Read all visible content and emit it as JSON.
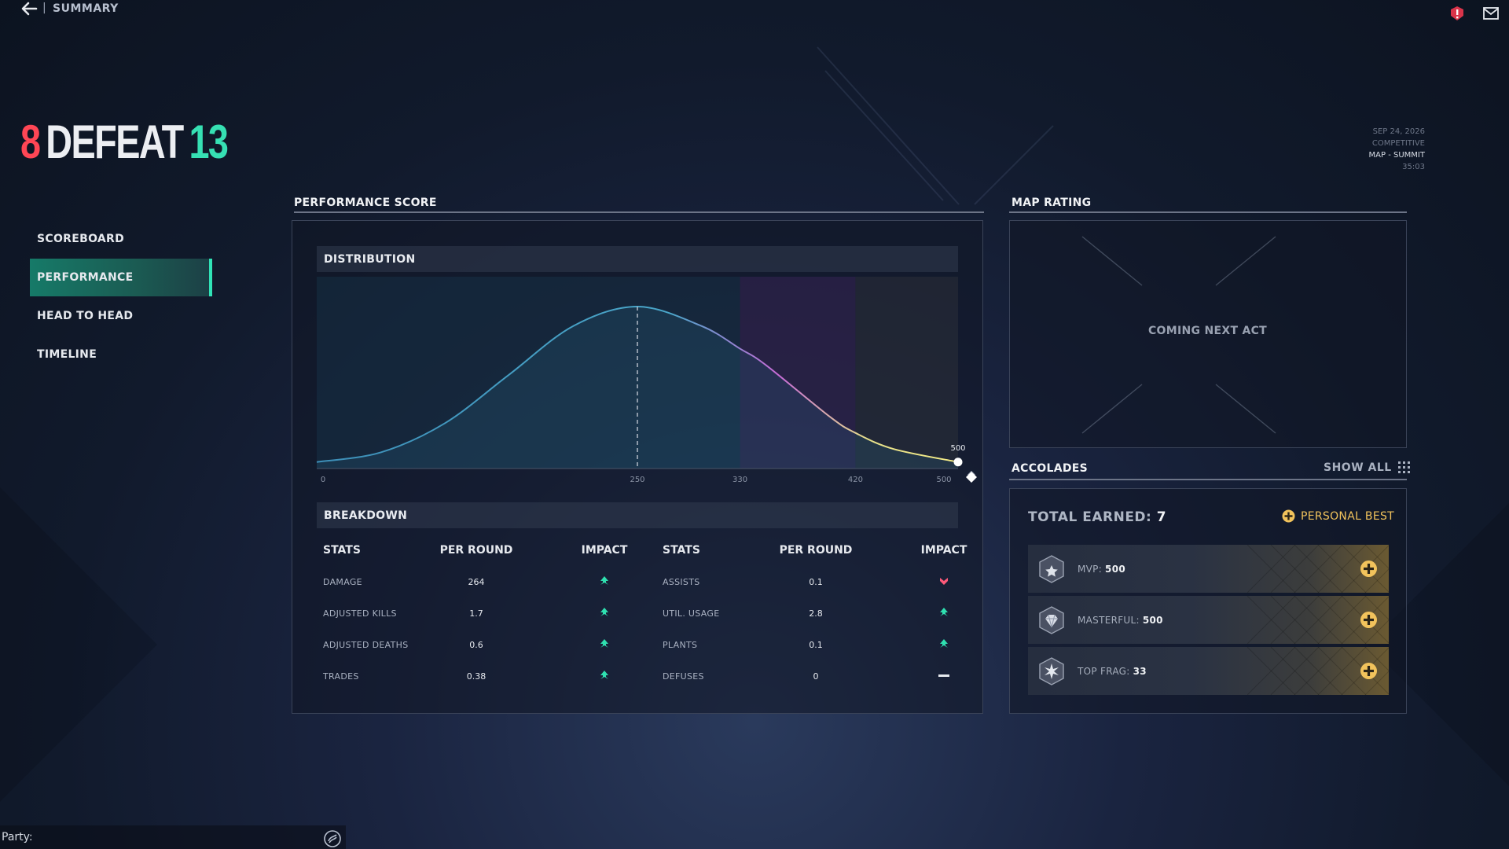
{
  "topbar": {
    "back_label": "SUMMARY",
    "separator": "|",
    "icons": [
      "back-arrow-icon",
      "alert-icon",
      "mail-icon"
    ]
  },
  "score": {
    "team": "8",
    "result": "DEFEAT",
    "enemy": "13"
  },
  "meta": {
    "date": "SEP 24, 2026",
    "mode": "COMPETITIVE",
    "map": "MAP - SUMMIT",
    "duration": "35:03"
  },
  "nav": {
    "items": [
      {
        "label": "SCOREBOARD",
        "active": false
      },
      {
        "label": "PERFORMANCE",
        "active": true
      },
      {
        "label": "HEAD TO HEAD",
        "active": false
      },
      {
        "label": "TIMELINE",
        "active": false
      }
    ]
  },
  "performance": {
    "title": "PERFORMANCE SCORE",
    "distribution_title": "DISTRIBUTION",
    "breakdown_title": "BREAKDOWN",
    "breakdown": {
      "headers": [
        "STATS",
        "PER ROUND",
        "IMPACT",
        "STATS",
        "PER ROUND",
        "IMPACT"
      ],
      "left": [
        {
          "stat": "DAMAGE",
          "value": "264",
          "impact": "up"
        },
        {
          "stat": "ADJUSTED KILLS",
          "value": "1.7",
          "impact": "up"
        },
        {
          "stat": "ADJUSTED DEATHS",
          "value": "0.6",
          "impact": "up"
        },
        {
          "stat": "TRADES",
          "value": "0.38",
          "impact": "up"
        }
      ],
      "right": [
        {
          "stat": "ASSISTS",
          "value": "0.1",
          "impact": "down"
        },
        {
          "stat": "UTIL. USAGE",
          "value": "2.8",
          "impact": "up"
        },
        {
          "stat": "PLANTS",
          "value": "0.1",
          "impact": "up"
        },
        {
          "stat": "DEFUSES",
          "value": "0",
          "impact": "neutral"
        }
      ]
    }
  },
  "chart_data": {
    "type": "area",
    "title": "DISTRIBUTION",
    "x_ticks": [
      0,
      250,
      330,
      420,
      500
    ],
    "xlim": [
      0,
      500
    ],
    "mean": 250,
    "curve": {
      "x": [
        0,
        50,
        100,
        150,
        200,
        250,
        300,
        330,
        350,
        400,
        420,
        450,
        500
      ],
      "y": [
        0.04,
        0.1,
        0.28,
        0.58,
        0.88,
        1.0,
        0.88,
        0.74,
        0.64,
        0.32,
        0.22,
        0.12,
        0.04
      ]
    },
    "zones": [
      {
        "from": 0,
        "to": 330,
        "color": "#1c4a63"
      },
      {
        "from": 330,
        "to": 420,
        "color": "#4a2a6a"
      },
      {
        "from": 420,
        "to": 500,
        "color": "#3a3d40"
      }
    ],
    "marker": {
      "x": 500,
      "label": "500"
    },
    "grid": false,
    "legend": "none"
  },
  "map_rating": {
    "title": "MAP RATING",
    "placeholder": "COMING NEXT ACT"
  },
  "accolades": {
    "title": "ACCOLADES",
    "show_all": "SHOW ALL",
    "total_label": "TOTAL EARNED:",
    "total_value": "7",
    "personal_best": "PERSONAL BEST",
    "items": [
      {
        "label": "MVP:",
        "value": "500",
        "icon": "star-badge-icon"
      },
      {
        "label": "MASTERFUL:",
        "value": "500",
        "icon": "diamond-badge-icon"
      },
      {
        "label": "TOP FRAG:",
        "value": "33",
        "icon": "burst-badge-icon"
      }
    ]
  },
  "footer": {
    "party_label": "Party:"
  },
  "colors": {
    "defeat_red": "#ff4655",
    "win_teal": "#36e0b3",
    "accent_green": "#30e3b6",
    "gold": "#f2c35c",
    "impact_down": "#ff5a7a"
  }
}
